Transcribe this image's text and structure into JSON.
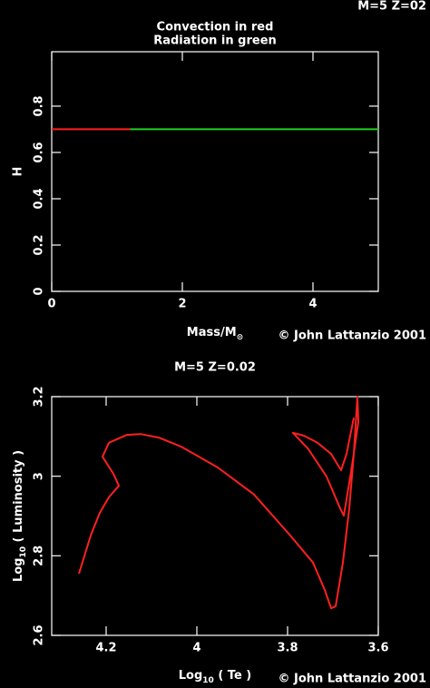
{
  "chart_data": [
    {
      "type": "line",
      "title": "Convection in red",
      "title_color": "#ff2020",
      "subtitle": "Radiation in green",
      "subtitle_color": "#20ff20",
      "tag": "M=5 Z=02",
      "tag_color": "#ffff00",
      "x_label": {
        "base": "Mass/M",
        "sub": "⊙"
      },
      "y_label": "H",
      "credit": "© John Lattanzio 2001",
      "xlim": [
        0,
        5
      ],
      "xticks": [
        0,
        2,
        4
      ],
      "ylim": [
        0,
        1.035
      ],
      "yticks": [
        0,
        0.2,
        0.4,
        0.6,
        0.8
      ],
      "series": [
        {
          "name": "Convection",
          "color": "#ff2020",
          "x": [
            0,
            1.2
          ],
          "values": [
            0.7,
            0.7
          ]
        },
        {
          "name": "Radiation",
          "color": "#20d020",
          "x": [
            1.2,
            5
          ],
          "values": [
            0.7,
            0.7
          ]
        }
      ]
    },
    {
      "type": "line",
      "title": "M=5 Z=0.02",
      "title_color": "#ffff00",
      "x_label": {
        "base": "Log",
        "sub": "10",
        "rest": " ( Te )"
      },
      "y_label": {
        "base": "Log",
        "sub": "10",
        "rest": " ( Luminosity )"
      },
      "credit": "© John Lattanzio 2001",
      "xlim": [
        4.32,
        3.6
      ],
      "xticks": [
        4.2,
        4,
        3.8,
        3.6
      ],
      "ylim": [
        2.6,
        3.2
      ],
      "yticks": [
        2.6,
        2.8,
        3,
        3.2
      ],
      "series": [
        {
          "name": "Track",
          "color": "#ff2020",
          "x": [
            4.26,
            4.234,
            4.214,
            4.194,
            4.172,
            4.184,
            4.208,
            4.194,
            4.154,
            4.124,
            4.084,
            4.034,
            3.954,
            3.874,
            3.794,
            3.744,
            3.718,
            3.704,
            3.694,
            3.678,
            3.664,
            3.654,
            3.646,
            3.644,
            3.66,
            3.676,
            3.684,
            3.714,
            3.754,
            3.788,
            3.764,
            3.734,
            3.704,
            3.682,
            3.67,
            3.654
          ],
          "values": [
            2.755,
            2.851,
            2.908,
            2.947,
            2.976,
            3.006,
            3.049,
            3.084,
            3.104,
            3.106,
            3.097,
            3.074,
            3.022,
            2.954,
            2.851,
            2.783,
            2.714,
            2.668,
            2.673,
            2.783,
            2.919,
            3.056,
            3.2,
            3.136,
            3.011,
            2.901,
            2.919,
            2.999,
            3.068,
            3.109,
            3.102,
            3.084,
            3.056,
            3.015,
            3.056,
            3.147
          ]
        }
      ]
    }
  ]
}
